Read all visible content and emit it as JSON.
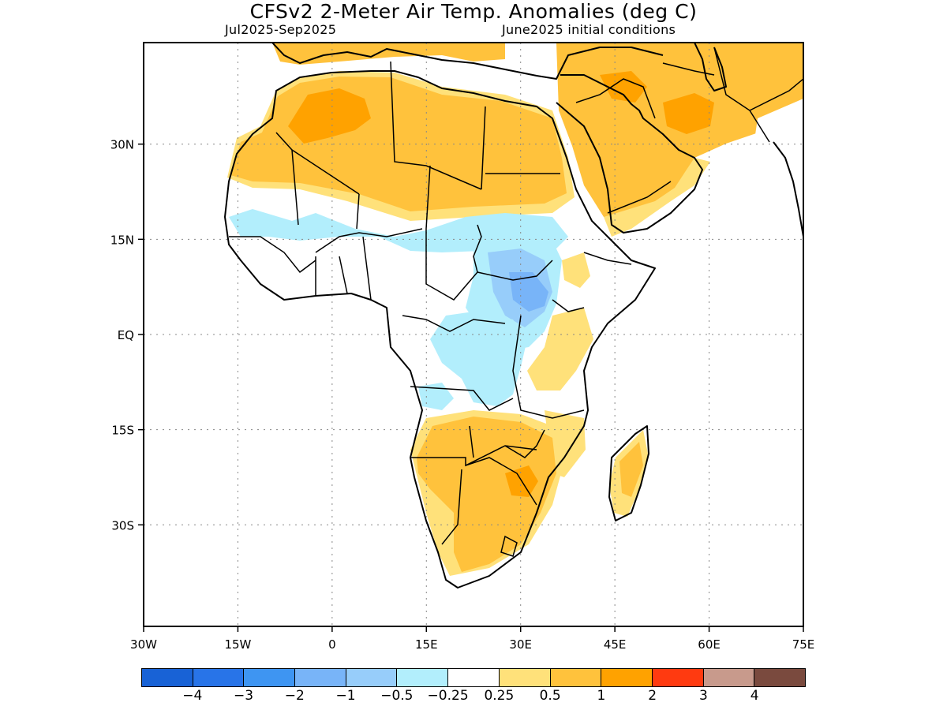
{
  "header": {
    "title": "CFSv2 2-Meter Air Temp. Anomalies (deg C)",
    "period": "Jul2025-Sep2025",
    "init": "June2025 initial conditions"
  },
  "chart_data": {
    "type": "heatmap",
    "title": "CFSv2 2-Meter Air Temp. Anomalies (deg C)",
    "xlabel": "",
    "ylabel": "",
    "xlim": [
      -30,
      75
    ],
    "ylim": [
      -46,
      46
    ],
    "grid": true,
    "x_ticks": [
      {
        "value": -30,
        "label": "30W"
      },
      {
        "value": -15,
        "label": "15W"
      },
      {
        "value": 0,
        "label": "0"
      },
      {
        "value": 15,
        "label": "15E"
      },
      {
        "value": 30,
        "label": "30E"
      },
      {
        "value": 45,
        "label": "45E"
      },
      {
        "value": 60,
        "label": "60E"
      },
      {
        "value": 75,
        "label": "75E"
      }
    ],
    "y_ticks": [
      {
        "value": 30,
        "label": "30N"
      },
      {
        "value": 15,
        "label": "15N"
      },
      {
        "value": 0,
        "label": "EQ"
      },
      {
        "value": -15,
        "label": "15S"
      },
      {
        "value": -30,
        "label": "30S"
      }
    ],
    "colorbar": {
      "colors": [
        "#1862d6",
        "#2874e8",
        "#3e95f2",
        "#78b4f8",
        "#97cdfa",
        "#b2eefc",
        "#ffffff",
        "#ffe17a",
        "#ffc23c",
        "#ffa200",
        "#ff3a10",
        "#c89a8c",
        "#7a4a3e"
      ],
      "labels": [
        "-4",
        "-3",
        "-2",
        "-1",
        "-0.5",
        "-0.25",
        "0.25",
        "0.5",
        "1",
        "2",
        "3",
        "4"
      ]
    }
  }
}
